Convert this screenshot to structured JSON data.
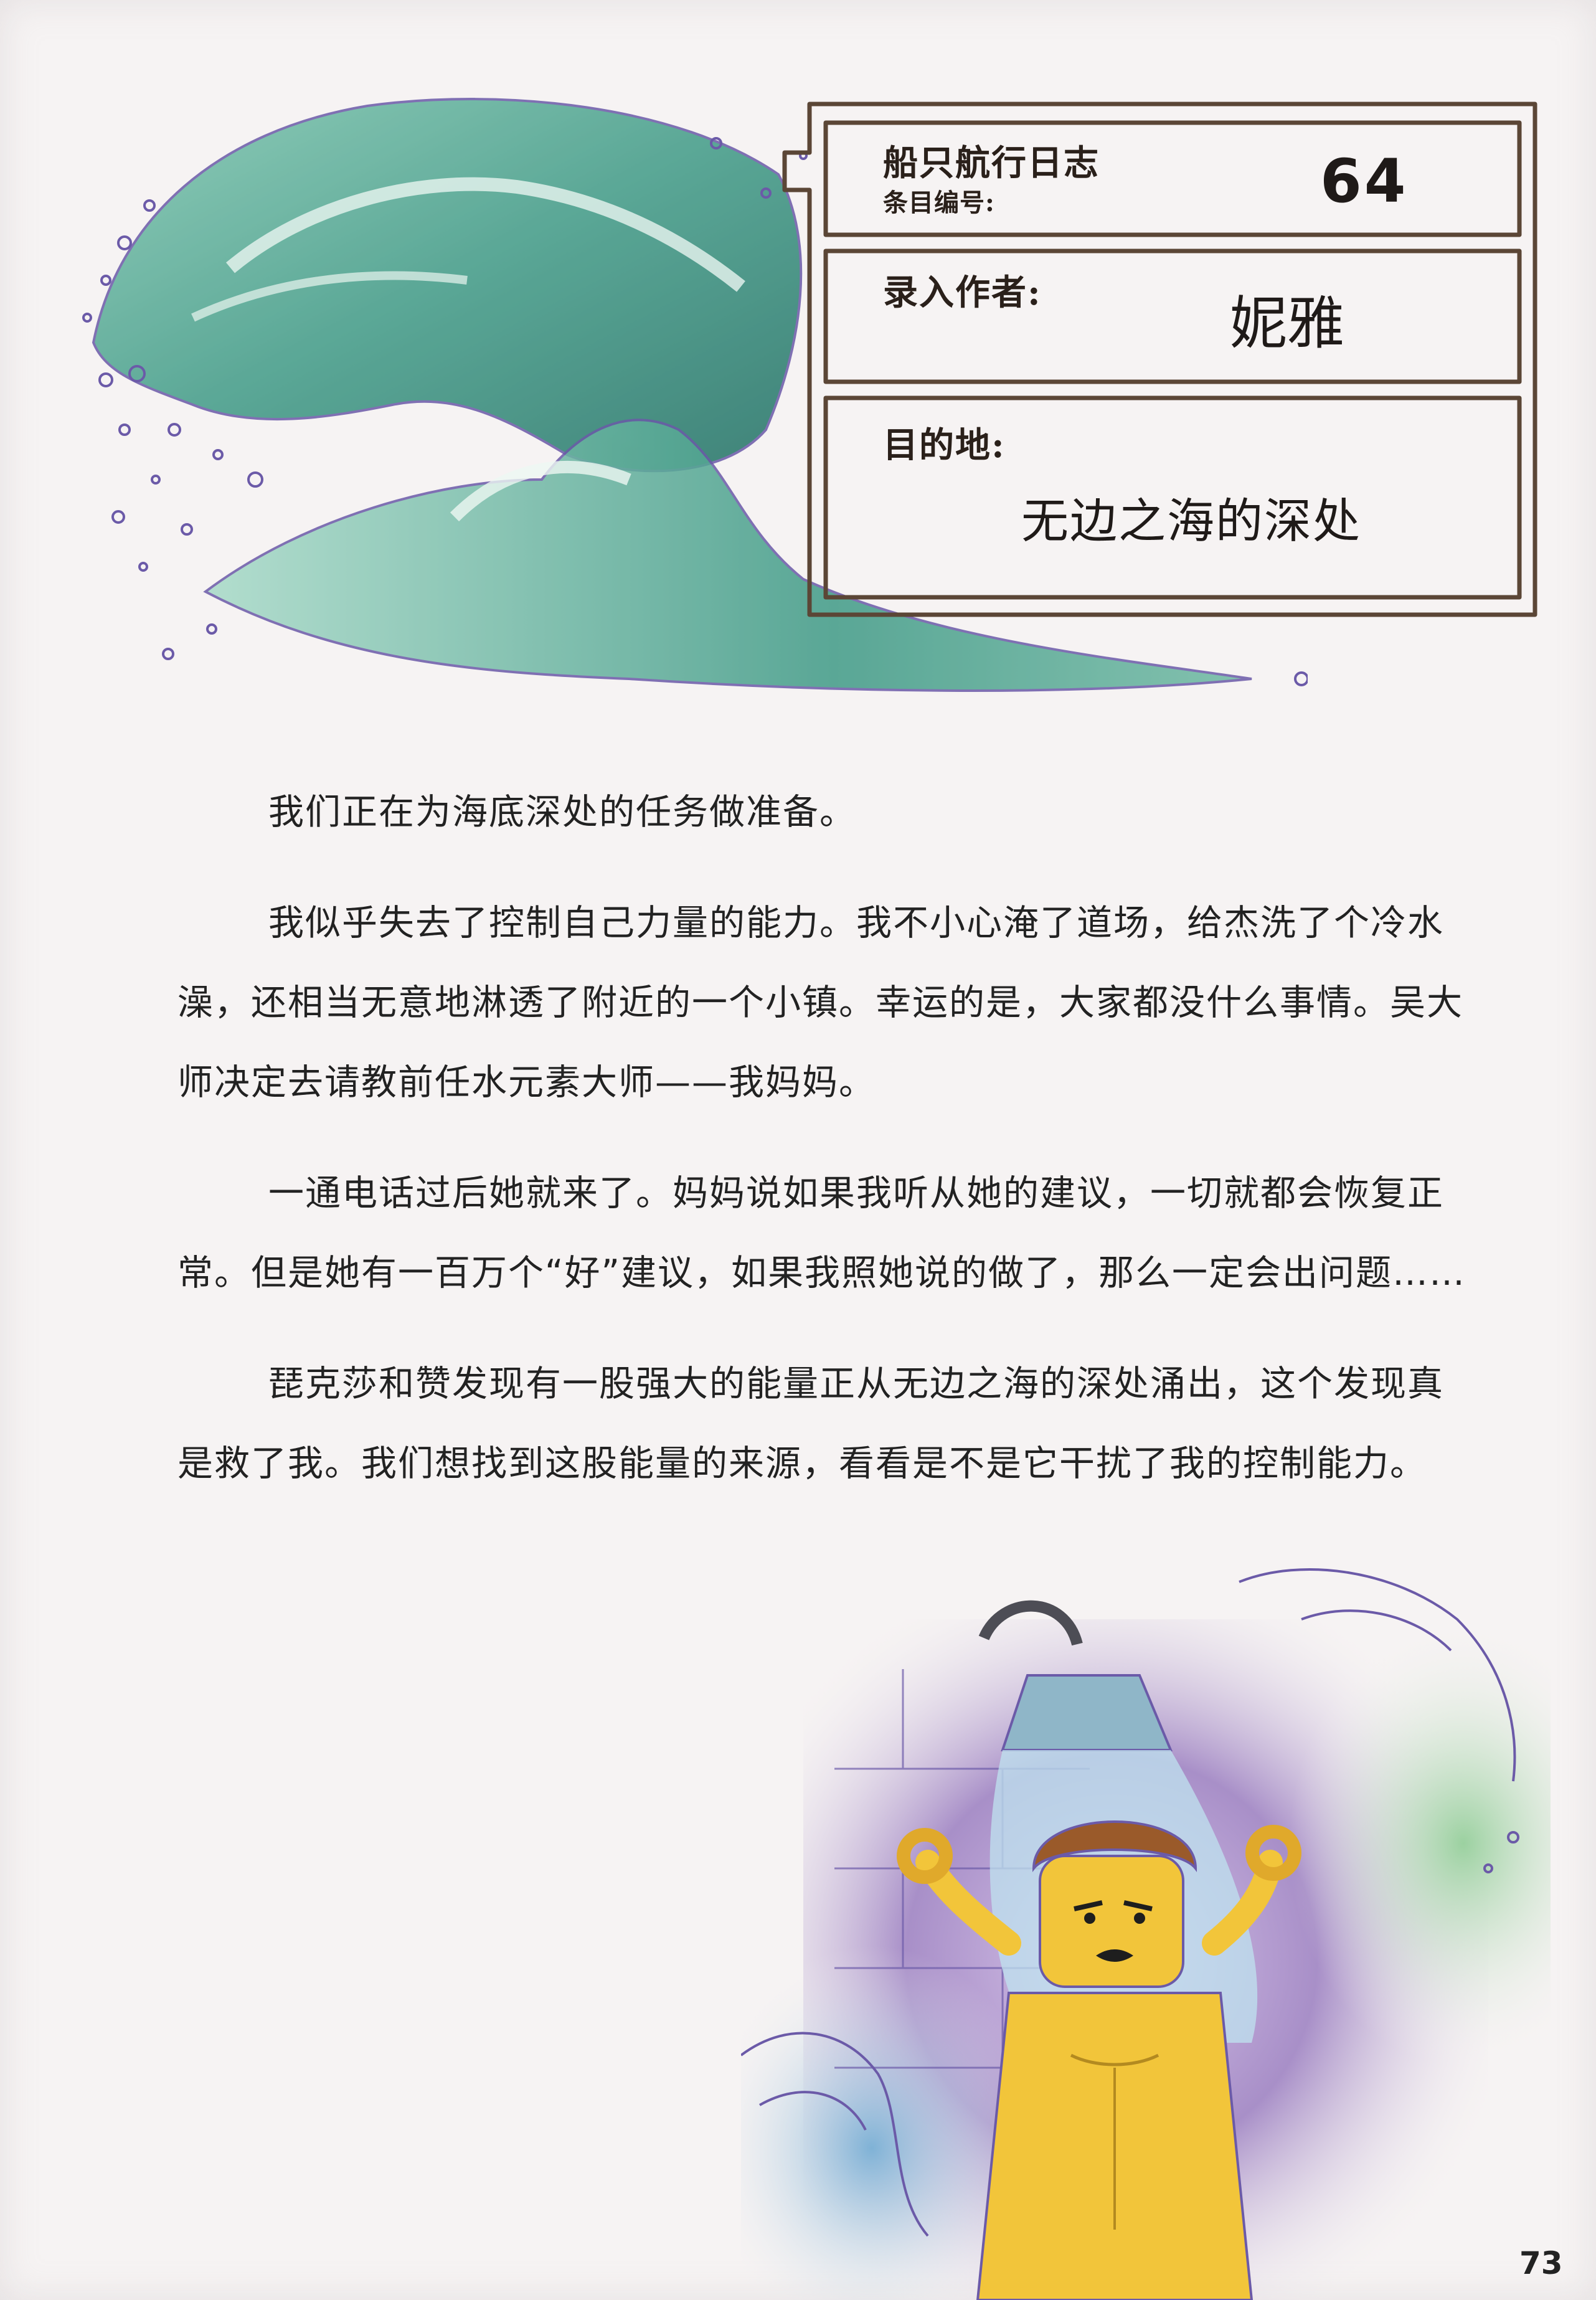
{
  "log": {
    "logbook_title": "船只航行日志",
    "entry_label": "条目编号:",
    "entry_number": "64",
    "author_label": "录入作者:",
    "author": "妮雅",
    "destination_label": "目的地:",
    "destination": "无边之海的深处"
  },
  "body": {
    "paragraphs": [
      "我们正在为海底深处的任务做准备。",
      "我似乎失去了控制自己力量的能力。我不小心淹了道场，给杰洗了个冷水澡，还相当无意地淋透了附近的一个小镇。幸运的是，大家都没什么事情。吴大师决定去请教前任水元素大师——我妈妈。",
      "一通电话过后她就来了。妈妈说如果我听从她的建议，一切就都会恢复正常。但是她有一百万个“好”建议，如果我照她说的做了，那么一定会出问题……",
      "琵克莎和赞发现有一股强大的能量正从无边之海的深处涌出，这个发现真是救了我。我们想找到这股能量的来源，看看是不是它干扰了我的控制能力。"
    ]
  },
  "page_number": "73",
  "colors": {
    "wave_teal": "#3f9a86",
    "wave_dark": "#1f6f63",
    "outline_purple": "#6b5aa8",
    "frame_brown": "#5b4636",
    "skin_yellow": "#f2c53a",
    "hair_brown": "#9a5a2a",
    "wall_purple": "#a88fc8",
    "wall_blue": "#7fb2d6",
    "wall_green": "#9bd1a0"
  },
  "icons": {
    "wave": "wave-illustration",
    "character": "lego-minifigure-illustration"
  }
}
